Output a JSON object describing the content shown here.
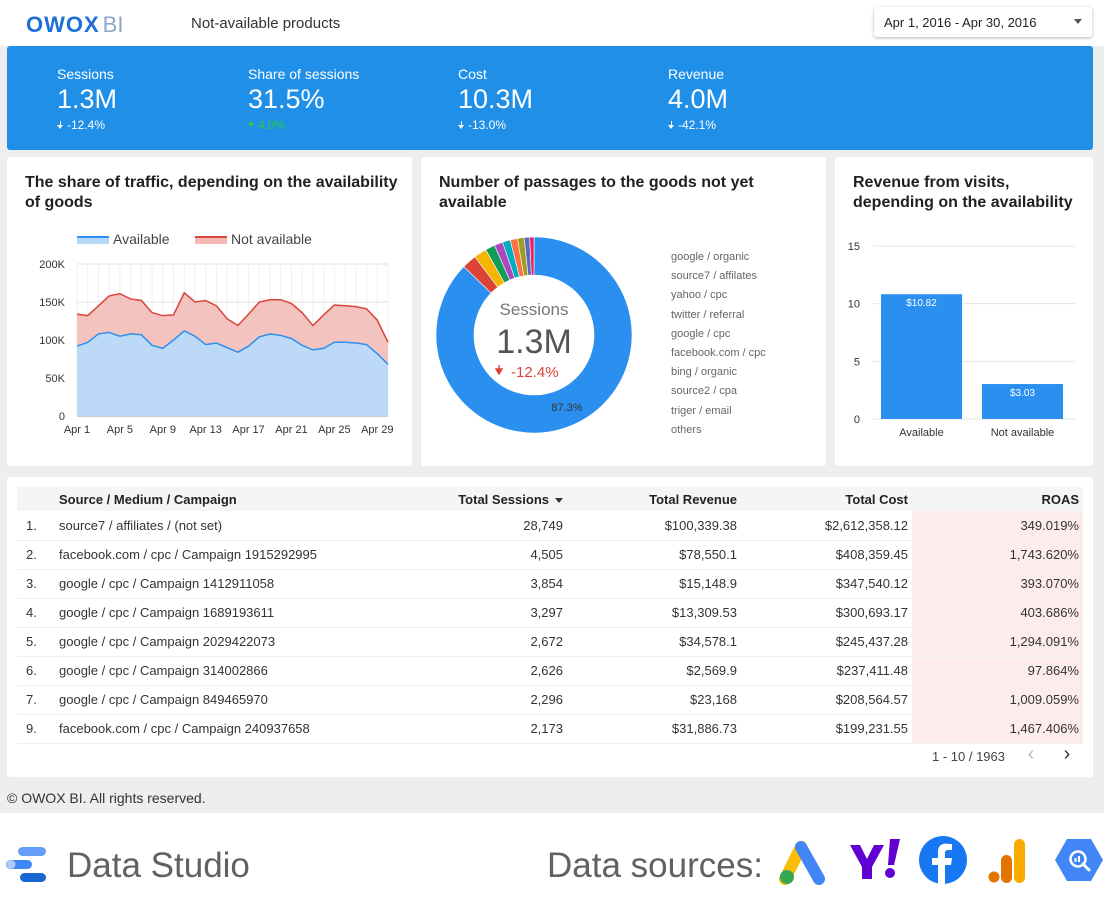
{
  "header": {
    "logo_main": "OWOX",
    "logo_suffix": "BI",
    "title": "Not-available products",
    "date_range": "Apr 1, 2016 - Apr 30, 2016"
  },
  "kpis": [
    {
      "label": "Sessions",
      "value": "1.3M",
      "delta": "-12.4%",
      "direction": "down"
    },
    {
      "label": "Share of sessions",
      "value": "31.5%",
      "delta": "4.0%",
      "direction": "up"
    },
    {
      "label": "Cost",
      "value": "10.3M",
      "delta": "-13.0%",
      "direction": "down"
    },
    {
      "label": "Revenue",
      "value": "4.0M",
      "delta": "-42.1%",
      "direction": "down"
    }
  ],
  "colors": {
    "brand_blue": "#1f8fe8",
    "available": "#2b8ff0",
    "not_available": "#db4437",
    "positive": "#2ecc40"
  },
  "area_card": {
    "title_line1": "The share of traffic, depending on the availability",
    "title_line2": "of goods"
  },
  "donut_card": {
    "title_line1": "Number of passages to the goods not yet",
    "title_line2": "available",
    "center_label": "Sessions",
    "center_value": "1.3M",
    "center_delta": "-12.4%"
  },
  "bar_card": {
    "title_line1": "Revenue from visits,",
    "title_line2": "depending on the availability"
  },
  "chart_data": [
    {
      "type": "area",
      "legend_position": "top",
      "grid": true,
      "x": [
        "Apr 1",
        "Apr 2",
        "Apr 3",
        "Apr 4",
        "Apr 5",
        "Apr 6",
        "Apr 7",
        "Apr 8",
        "Apr 9",
        "Apr 10",
        "Apr 11",
        "Apr 12",
        "Apr 13",
        "Apr 14",
        "Apr 15",
        "Apr 16",
        "Apr 17",
        "Apr 18",
        "Apr 19",
        "Apr 20",
        "Apr 21",
        "Apr 22",
        "Apr 23",
        "Apr 24",
        "Apr 25",
        "Apr 26",
        "Apr 27",
        "Apr 28",
        "Apr 29",
        "Apr 30"
      ],
      "x_ticks": [
        "Apr 1",
        "Apr 5",
        "Apr 9",
        "Apr 13",
        "Apr 17",
        "Apr 21",
        "Apr 25",
        "Apr 29"
      ],
      "y_ticks": [
        "0",
        "50K",
        "100K",
        "150K",
        "200K"
      ],
      "ylim": [
        0,
        200000
      ],
      "stacked": true,
      "series": [
        {
          "name": "Available",
          "values": [
            92000,
            97000,
            108000,
            110000,
            105000,
            108000,
            107000,
            93000,
            89000,
            100000,
            112000,
            105000,
            94000,
            96000,
            90000,
            84000,
            92000,
            104000,
            108000,
            106000,
            102000,
            93000,
            87000,
            89000,
            97000,
            97000,
            96000,
            94000,
            82000,
            68000
          ]
        },
        {
          "name": "Not available",
          "values": [
            42000,
            35000,
            37000,
            48000,
            56000,
            46000,
            45000,
            43000,
            43000,
            33000,
            50000,
            45000,
            58000,
            49000,
            38000,
            35000,
            42000,
            46000,
            45000,
            47000,
            46000,
            43000,
            32000,
            44000,
            49000,
            48000,
            48000,
            47000,
            44000,
            29000
          ]
        }
      ]
    },
    {
      "type": "pie",
      "donut": true,
      "slice_label": "87.3%",
      "categories": [
        "google / organic",
        "source7 / affilates",
        "yahoo / cpc",
        "twitter / referral",
        "google / cpc",
        "facebook.com / cpc",
        "bing / organic",
        "source2 / cpa",
        "triger / email",
        "others"
      ],
      "values": [
        87.3,
        2.4,
        2.1,
        1.6,
        1.4,
        1.3,
        1.2,
        1.1,
        0.9,
        0.7
      ],
      "colors": [
        "#2b8ff0",
        "#db4437",
        "#f4b400",
        "#0f9d58",
        "#ab47bc",
        "#00acc1",
        "#ff7043",
        "#9e9d24",
        "#5c6bc0",
        "#e91e63"
      ]
    },
    {
      "type": "bar",
      "categories": [
        "Available",
        "Not available"
      ],
      "values": [
        10.82,
        3.03
      ],
      "data_labels": [
        "$10.82",
        "$3.03"
      ],
      "y_ticks": [
        "0",
        "5",
        "10",
        "15"
      ],
      "ylim": [
        0,
        15
      ],
      "grid": true
    }
  ],
  "table": {
    "columns": [
      "Source / Medium / Campaign",
      "Total Sessions",
      "Total Revenue",
      "Total Cost",
      "ROAS"
    ],
    "rows": [
      {
        "idx": "1.",
        "name": "source7 / affiliates / (not set)",
        "sessions": "28,749",
        "revenue": "$100,339.38",
        "cost": "$2,612,358.12",
        "roas": "349.019%"
      },
      {
        "idx": "2.",
        "name": "facebook.com / cpc / Campaign 1915292995",
        "sessions": "4,505",
        "revenue": "$78,550.1",
        "cost": "$408,359.45",
        "roas": "1,743.620%"
      },
      {
        "idx": "3.",
        "name": "google / cpc / Campaign 1412911058",
        "sessions": "3,854",
        "revenue": "$15,148.9",
        "cost": "$347,540.12",
        "roas": "393.070%"
      },
      {
        "idx": "4.",
        "name": "google / cpc / Campaign 1689193611",
        "sessions": "3,297",
        "revenue": "$13,309.53",
        "cost": "$300,693.17",
        "roas": "403.686%"
      },
      {
        "idx": "5.",
        "name": "google / cpc / Campaign 2029422073",
        "sessions": "2,672",
        "revenue": "$34,578.1",
        "cost": "$245,437.28",
        "roas": "1,294.091%"
      },
      {
        "idx": "6.",
        "name": "google / cpc / Campaign 314002866",
        "sessions": "2,626",
        "revenue": "$2,569.9",
        "cost": "$237,411.48",
        "roas": "97.864%"
      },
      {
        "idx": "7.",
        "name": "google / cpc / Campaign 849465970",
        "sessions": "2,296",
        "revenue": "$23,168",
        "cost": "$208,564.57",
        "roas": "1,009.059%"
      },
      {
        "idx": "9.",
        "name": "facebook.com / cpc / Campaign 240937658",
        "sessions": "2,173",
        "revenue": "$31,886.73",
        "cost": "$199,231.55",
        "roas": "1,467.406%"
      }
    ],
    "pagination": "1 - 10 / 1963"
  },
  "copyright": "© OWOX BI. All rights reserved.",
  "footer": {
    "product": "Data Studio",
    "sources_label": "Data sources:",
    "source_icons": [
      "google-ads-icon",
      "yahoo-icon",
      "facebook-icon",
      "google-analytics-icon",
      "bigquery-icon"
    ]
  }
}
